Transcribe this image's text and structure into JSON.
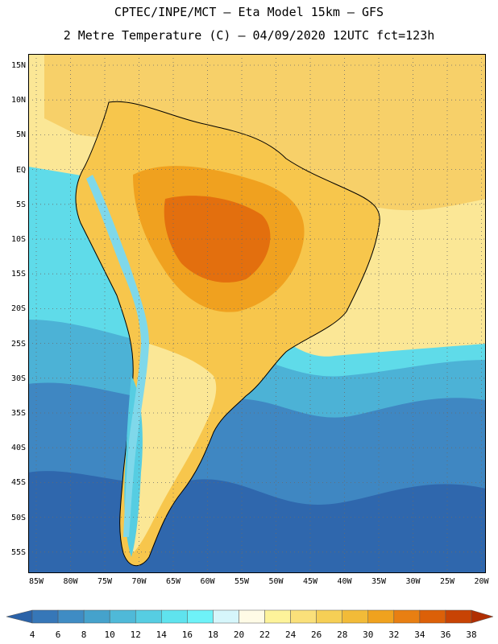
{
  "header": {
    "line1": "CPTEC/INPE/MCT –  Eta Model 15km – GFS",
    "line2": "2 Metre Temperature (C) – 04/09/2020 12UTC fct=123h"
  },
  "latitudes": [
    "15N",
    "10N",
    "5N",
    "EQ",
    "5S",
    "10S",
    "15S",
    "20S",
    "25S",
    "30S",
    "35S",
    "40S",
    "45S",
    "50S",
    "55S"
  ],
  "longitudes": [
    "85W",
    "80W",
    "75W",
    "70W",
    "65W",
    "60W",
    "55W",
    "50W",
    "45W",
    "40W",
    "35W",
    "30W",
    "25W",
    "20W"
  ],
  "colorbar": {
    "labels": [
      "4",
      "6",
      "8",
      "10",
      "12",
      "14",
      "16",
      "18",
      "20",
      "22",
      "24",
      "26",
      "28",
      "30",
      "32",
      "34",
      "36",
      "38"
    ],
    "colors": [
      "#2a62a8",
      "#3677b8",
      "#3f8cc4",
      "#45a2cc",
      "#4fb9d8",
      "#56cde2",
      "#5fe3ee",
      "#6ef2f8",
      "#d6f6fb",
      "#fffbe6",
      "#fdf39a",
      "#fae07a",
      "#f6cf55",
      "#f2bb38",
      "#f0a21e",
      "#e87f12",
      "#dc6008",
      "#c84304",
      "#b02e02"
    ]
  },
  "palette": {
    "ocean_deep": "#2f67ad",
    "ocean_mid": "#3f87c2",
    "ocean_light": "#4cb2d6",
    "ocean_cyan": "#5fdbe9",
    "ocean_warm": "#fbe796",
    "ocean_hot": "#f7d069",
    "land_hot": "#e36f0e",
    "land_warm": "#f0a11f",
    "land_mild": "#f7c64c",
    "andes_cold": "#7fd8ea"
  }
}
